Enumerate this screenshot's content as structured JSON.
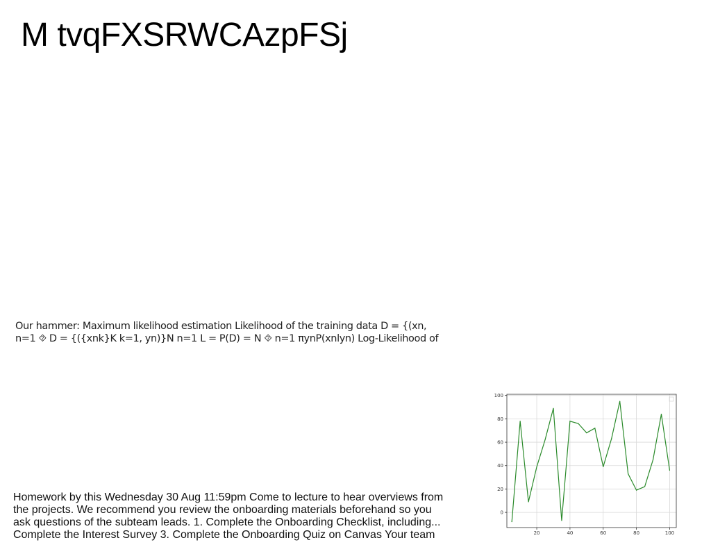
{
  "title": "M tvqFXSRWCAzpFSj",
  "snippet_ml": {
    "lines": [
      "Our hammer: Maximum likelihood estimation Likelihood of the training data D = {(xn,",
      "n=1 ⯑ D = {({xnk}K k=1, yn)}N n=1 L = P(D) = N ⯑ n=1 πynP(xnlyn) Log-Likelihood of"
    ]
  },
  "snippet_hw": {
    "lines": [
      "Homework by this Wednesday 30 Aug 11:59pm Come to lecture to hear overviews from",
      "the projects. We recommend you review the onboarding materials beforehand so you",
      "ask questions of the subteam leads. 1. Complete the Onboarding Checklist, including...",
      "Complete the Interest Survey 3. Complete the Onboarding Quiz on Canvas Your team"
    ]
  },
  "chart_data": {
    "type": "line",
    "title": "",
    "xlabel": "",
    "ylabel": "",
    "xlim": [
      2,
      104
    ],
    "ylim": [
      -13,
      101
    ],
    "xticks": [
      20,
      40,
      60,
      80,
      100
    ],
    "yticks": [
      0,
      20,
      40,
      60,
      80,
      100
    ],
    "grid": true,
    "series": [
      {
        "color": "#2a8a2a",
        "x": [
          5,
          10,
          15,
          20,
          25,
          30,
          35,
          40,
          45,
          50,
          55,
          60,
          65,
          70,
          75,
          80,
          85,
          90,
          95,
          100
        ],
        "values": [
          -8,
          78,
          9,
          39,
          62,
          89,
          -7,
          78,
          76,
          68,
          72,
          39,
          63,
          95,
          33,
          19,
          22,
          45,
          84,
          36
        ]
      }
    ]
  }
}
